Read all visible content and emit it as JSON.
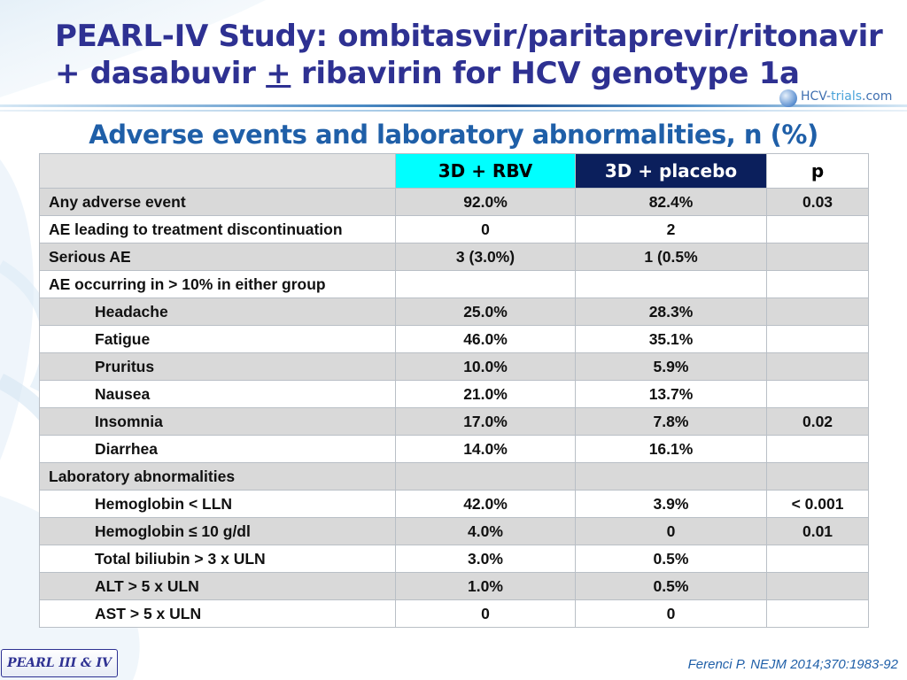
{
  "title": {
    "line1": "PEARL-IV Study: ombitasvir/paritaprevir/ritonavir",
    "line2_before": "+ dasabuvir ",
    "line2_pm": "+",
    "line2_after": " ribavirin for HCV genotype 1a"
  },
  "logo": {
    "part1": "HCV-",
    "part2": "trials",
    "part3": ".com"
  },
  "subtitle": "Adverse events and laboratory abnormalities, n (%)",
  "table": {
    "headers": [
      "",
      "3D + RBV",
      "3D + placebo",
      "p"
    ],
    "header_colors": {
      "rbv": "#00ffff",
      "placebo": "#0b1f5c"
    },
    "rows": [
      {
        "label": "Any adverse event",
        "indent": false,
        "rbv": "92.0%",
        "placebo": "82.4%",
        "p": "0.03"
      },
      {
        "label": "AE leading to treatment discontinuation",
        "indent": false,
        "rbv": "0",
        "placebo": "2",
        "p": ""
      },
      {
        "label": "Serious AE",
        "indent": false,
        "rbv": "3 (3.0%)",
        "placebo": "1 (0.5%",
        "p": ""
      },
      {
        "label": "AE occurring in > 10% in either group",
        "indent": false,
        "rbv": "",
        "placebo": "",
        "p": ""
      },
      {
        "label": "Headache",
        "indent": true,
        "rbv": "25.0%",
        "placebo": "28.3%",
        "p": ""
      },
      {
        "label": "Fatigue",
        "indent": true,
        "rbv": "46.0%",
        "placebo": "35.1%",
        "p": ""
      },
      {
        "label": "Pruritus",
        "indent": true,
        "rbv": "10.0%",
        "placebo": "5.9%",
        "p": ""
      },
      {
        "label": "Nausea",
        "indent": true,
        "rbv": "21.0%",
        "placebo": "13.7%",
        "p": ""
      },
      {
        "label": "Insomnia",
        "indent": true,
        "rbv": "17.0%",
        "placebo": "7.8%",
        "p": "0.02"
      },
      {
        "label": "Diarrhea",
        "indent": true,
        "rbv": "14.0%",
        "placebo": "16.1%",
        "p": ""
      },
      {
        "label": "Laboratory abnormalities",
        "indent": false,
        "rbv": "",
        "placebo": "",
        "p": ""
      },
      {
        "label": "Hemoglobin < LLN",
        "indent": true,
        "rbv": "42.0%",
        "placebo": "3.9%",
        "p": "< 0.001"
      },
      {
        "label": "Hemoglobin ≤ 10 g/dl",
        "indent": true,
        "rbv": "4.0%",
        "placebo": "0",
        "p": "0.01"
      },
      {
        "label": "Total biliubin > 3 x ULN",
        "indent": true,
        "rbv": "3.0%",
        "placebo": "0.5%",
        "p": ""
      },
      {
        "label": "ALT > 5 x ULN",
        "indent": true,
        "rbv": "1.0%",
        "placebo": "0.5%",
        "p": ""
      },
      {
        "label": "AST > 5 x ULN",
        "indent": true,
        "rbv": "0",
        "placebo": "0",
        "p": ""
      }
    ]
  },
  "footer": {
    "badge": "PEARL III & IV",
    "citation": "Ferenci P. NEJM 2014;370:1983-92"
  }
}
